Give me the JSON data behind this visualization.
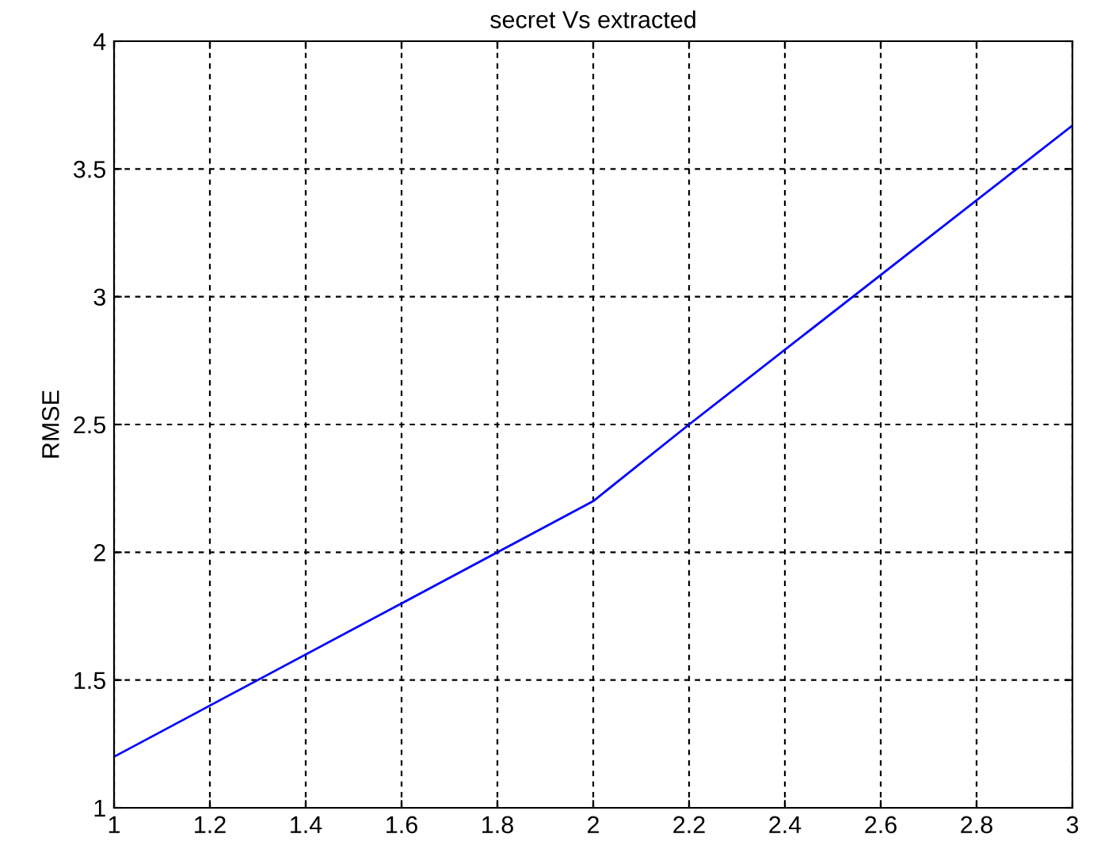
{
  "chart_data": {
    "type": "line",
    "title": "secret Vs extracted",
    "ylabel": "RMSE",
    "x": [
      1,
      2,
      2.2,
      3
    ],
    "series": [
      {
        "color": "#0000ff",
        "values": [
          1.2,
          2.2,
          2.5,
          3.67
        ]
      }
    ],
    "xlim": [
      1,
      3
    ],
    "xticks": [
      1,
      1.2,
      1.4,
      1.6,
      1.8,
      2,
      2.2,
      2.4,
      2.6,
      2.8,
      3
    ],
    "ylim": [
      1,
      4
    ],
    "yticks": [
      1,
      1.5,
      2,
      2.5,
      3,
      3.5,
      4
    ],
    "grid": true,
    "marker": "none",
    "line_style": "solid"
  }
}
